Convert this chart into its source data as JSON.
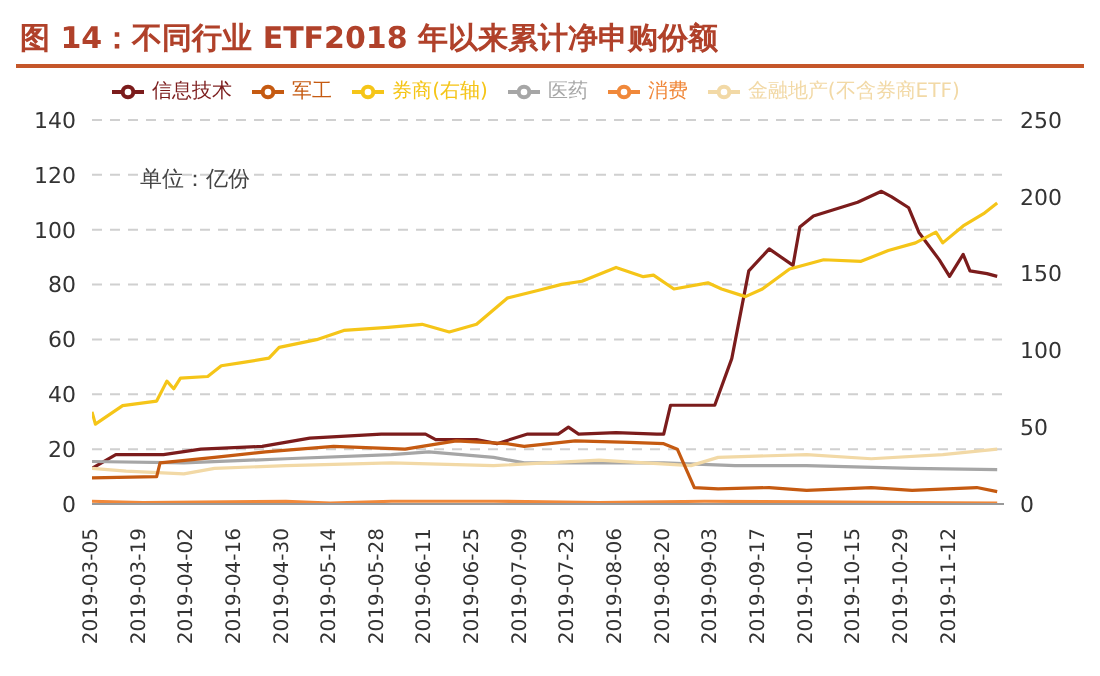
{
  "chart_data": {
    "type": "line",
    "title": "图 14：不同行业 ETF2018 年以来累计净申购份额",
    "annotations": [
      "单位：亿份"
    ],
    "legend": "top",
    "grid": "y",
    "line_style": "solid",
    "xlim": [
      "2019-03-05",
      "2019-11-28"
    ],
    "xticks": [
      "2019-03-05",
      "2019-03-19",
      "2019-04-02",
      "2019-04-16",
      "2019-04-30",
      "2019-05-14",
      "2019-05-28",
      "2019-06-11",
      "2019-06-25",
      "2019-07-09",
      "2019-07-23",
      "2019-08-06",
      "2019-08-20",
      "2019-09-03",
      "2019-09-17",
      "2019-10-01",
      "2019-10-15",
      "2019-10-29",
      "2019-11-12"
    ],
    "ylim": [
      0,
      140
    ],
    "yticks": [
      0,
      20,
      40,
      60,
      80,
      100,
      120,
      140
    ],
    "y2lim": [
      0,
      250
    ],
    "y2ticks": [
      0,
      50,
      100,
      150,
      200,
      250
    ],
    "series": [
      {
        "name": "信息技术",
        "color": "#7b1c1c",
        "x": [
          "2019-03-05",
          "2019-03-12",
          "2019-03-20",
          "2019-03-26",
          "2019-04-06",
          "2019-04-24",
          "2019-05-08",
          "2019-05-29",
          "2019-06-11",
          "2019-06-14",
          "2019-06-26",
          "2019-07-02",
          "2019-07-11",
          "2019-07-20",
          "2019-07-23",
          "2019-07-26",
          "2019-08-06",
          "2019-08-18",
          "2019-08-20",
          "2019-08-22",
          "2019-09-04",
          "2019-09-09",
          "2019-09-14",
          "2019-09-20",
          "2019-09-27",
          "2019-09-29",
          "2019-10-03",
          "2019-10-16",
          "2019-10-23",
          "2019-10-26",
          "2019-10-31",
          "2019-11-03",
          "2019-11-09",
          "2019-11-12",
          "2019-11-16",
          "2019-11-18",
          "2019-11-23",
          "2019-11-26"
        ],
        "values": [
          13,
          18,
          18,
          18,
          20,
          21,
          24,
          25.5,
          25.5,
          23.5,
          23.5,
          22,
          25.5,
          25.5,
          28,
          25.5,
          26,
          25.5,
          25.5,
          36,
          36,
          53,
          85,
          93,
          87,
          101,
          105,
          110,
          114,
          112,
          108,
          99,
          89,
          83,
          91,
          85,
          84,
          83
        ]
      },
      {
        "name": "消费",
        "color": "#f0883a",
        "x": [
          "2019-03-05",
          "2019-03-20",
          "2019-05-01",
          "2019-05-14",
          "2019-06-01",
          "2019-07-01",
          "2019-08-01",
          "2019-09-01",
          "2019-10-01",
          "2019-11-01",
          "2019-11-26"
        ],
        "values": [
          1,
          0.5,
          1,
          0.3,
          1,
          1,
          0.5,
          1,
          0.8,
          0.5,
          0.3
        ]
      },
      {
        "name": "医药",
        "color": "#a6a6a6",
        "x": [
          "2019-03-05",
          "2019-04-01",
          "2019-05-01",
          "2019-06-01",
          "2019-06-12",
          "2019-07-01",
          "2019-07-10",
          "2019-08-01",
          "2019-08-20",
          "2019-09-10",
          "2019-10-01",
          "2019-11-01",
          "2019-11-26"
        ],
        "values": [
          15.5,
          15,
          16.5,
          18,
          19,
          17,
          15,
          15,
          15,
          14,
          14,
          13,
          12.5
        ]
      },
      {
        "name": "金融地产(不含券商ETF)",
        "color": "#f2d9a6",
        "x": [
          "2019-03-05",
          "2019-03-15",
          "2019-04-01",
          "2019-04-10",
          "2019-05-01",
          "2019-06-01",
          "2019-07-01",
          "2019-08-01",
          "2019-08-28",
          "2019-09-05",
          "2019-10-01",
          "2019-10-20",
          "2019-11-10",
          "2019-11-26"
        ],
        "values": [
          13,
          12,
          11,
          13,
          14,
          15,
          14,
          16,
          14,
          17,
          18,
          16.5,
          18,
          20
        ]
      },
      {
        "name": "军工",
        "color": "#c55a11",
        "x": [
          "2019-03-05",
          "2019-03-24",
          "2019-03-25",
          "2019-04-10",
          "2019-04-25",
          "2019-05-15",
          "2019-06-05",
          "2019-06-20",
          "2019-07-05",
          "2019-07-10",
          "2019-07-25",
          "2019-08-10",
          "2019-08-20",
          "2019-08-24",
          "2019-08-29",
          "2019-09-05",
          "2019-09-20",
          "2019-10-01",
          "2019-10-20",
          "2019-11-01",
          "2019-11-20",
          "2019-11-26"
        ],
        "values": [
          9.5,
          10,
          15,
          17,
          19,
          21,
          20,
          23,
          22,
          21,
          23,
          22.5,
          22,
          20,
          6,
          5.5,
          6,
          5,
          6,
          5,
          6,
          4.5
        ]
      },
      {
        "name": "券商(右轴)",
        "color": "#f5c518",
        "axis": "y2",
        "x": [
          "2019-03-05",
          "2019-03-06",
          "2019-03-14",
          "2019-03-24",
          "2019-03-27",
          "2019-03-29",
          "2019-03-31",
          "2019-04-08",
          "2019-04-12",
          "2019-04-18",
          "2019-04-26",
          "2019-04-29",
          "2019-05-10",
          "2019-05-18",
          "2019-05-31",
          "2019-06-10",
          "2019-06-18",
          "2019-06-26",
          "2019-07-05",
          "2019-07-14",
          "2019-07-21",
          "2019-07-27",
          "2019-08-06",
          "2019-08-14",
          "2019-08-17",
          "2019-08-23",
          "2019-09-02",
          "2019-09-06",
          "2019-09-13",
          "2019-09-18",
          "2019-09-26",
          "2019-10-06",
          "2019-10-17",
          "2019-10-25",
          "2019-11-02",
          "2019-11-08",
          "2019-11-10",
          "2019-11-16",
          "2019-11-22",
          "2019-11-26"
        ],
        "values": [
          60,
          52,
          64,
          67,
          80,
          75,
          82,
          83,
          90,
          92,
          95,
          102,
          107,
          113,
          115,
          117,
          112,
          117,
          134,
          139,
          143,
          145,
          154,
          148,
          149,
          140,
          144,
          140,
          135,
          140,
          153,
          159,
          158,
          165,
          170,
          177,
          170,
          181,
          189,
          196
        ]
      }
    ]
  }
}
